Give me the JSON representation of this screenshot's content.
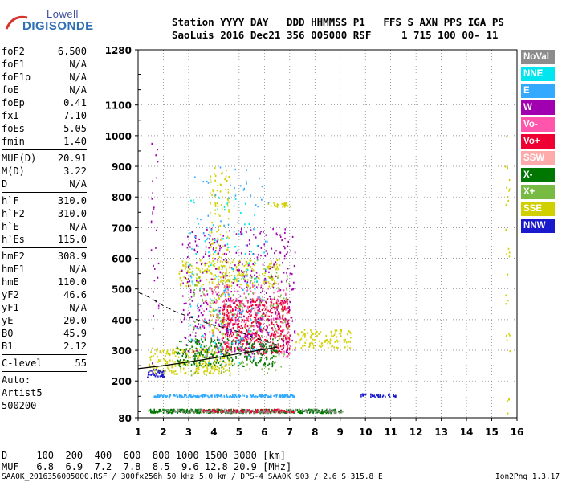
{
  "logo": {
    "line1": "Lowell",
    "line2": "DIGISONDE"
  },
  "header": {
    "line1": "Station YYYY DAY   DDD HHMMSS P1   FFS S AXN PPS IGA PS",
    "line2": "SaoLuis 2016 Dec21 356 005000 RSF     1 715 100 00- 11"
  },
  "params": {
    "group1": [
      {
        "name": "foF2",
        "value": "6.500"
      },
      {
        "name": "foF1",
        "value": "N/A"
      },
      {
        "name": "foF1p",
        "value": "N/A"
      },
      {
        "name": "foE",
        "value": "N/A"
      },
      {
        "name": "foEp",
        "value": "0.41"
      },
      {
        "name": "fxI",
        "value": "7.10"
      },
      {
        "name": "foEs",
        "value": "5.05"
      },
      {
        "name": "fmin",
        "value": "1.40"
      }
    ],
    "group2": [
      {
        "name": "MUF(D)",
        "value": "20.91"
      },
      {
        "name": "M(D)",
        "value": "3.22"
      },
      {
        "name": "D",
        "value": "N/A"
      }
    ],
    "group3": [
      {
        "name": "h`F",
        "value": "310.0"
      },
      {
        "name": "h`F2",
        "value": "310.0"
      },
      {
        "name": "h`E",
        "value": "N/A"
      },
      {
        "name": "h`Es",
        "value": "115.0"
      }
    ],
    "group4": [
      {
        "name": "hmF2",
        "value": "308.9"
      },
      {
        "name": "hmF1",
        "value": "N/A"
      },
      {
        "name": "hmE",
        "value": "110.0"
      },
      {
        "name": "yF2",
        "value": "46.6"
      },
      {
        "name": "yF1",
        "value": "N/A"
      },
      {
        "name": "yE",
        "value": "20.0"
      },
      {
        "name": "B0",
        "value": "45.9"
      },
      {
        "name": "B1",
        "value": "2.12"
      }
    ],
    "group5": [
      {
        "name": "C-level",
        "value": "55"
      }
    ],
    "auto": [
      "Auto:",
      "Artist5",
      "500200"
    ]
  },
  "legend": [
    {
      "label": "NoVal",
      "color": "#8c8c8c"
    },
    {
      "label": "NNE",
      "color": "#00e5ee"
    },
    {
      "label": "E",
      "color": "#33aaff"
    },
    {
      "label": "W",
      "color": "#a000b0"
    },
    {
      "label": "Vo-",
      "color": "#ff55aa"
    },
    {
      "label": "Vo+",
      "color": "#ee0033"
    },
    {
      "label": "SSW",
      "color": "#ffaaaa"
    },
    {
      "label": "X-",
      "color": "#007700"
    },
    {
      "label": "X+",
      "color": "#77bb44"
    },
    {
      "label": "SSE",
      "color": "#d0d000"
    },
    {
      "label": "NNW",
      "color": "#1a1acc"
    }
  ],
  "dmuf": {
    "line1": "D     100  200  400  600  800 1000 1500 3000 [km]",
    "line2": "MUF   6.8  6.9  7.2  7.8  8.5  9.6 12.8 20.9 [MHz]"
  },
  "footer": {
    "left": "SAA0K_2016356005000.RSF / 300fx256h 50 kHz 5.0 km / DPS-4 SAA0K 903 / 2.6 S 315.8 E",
    "right": "Ion2Png 1.3.17"
  },
  "chart_data": {
    "type": "scatter",
    "title": "",
    "xlabel": "",
    "ylabel": "",
    "xlim": [
      1,
      16
    ],
    "ylim": [
      80,
      1280
    ],
    "x_ticks": [
      1,
      2,
      3,
      4,
      5,
      6,
      7,
      8,
      9,
      10,
      11,
      12,
      13,
      14,
      15,
      16
    ],
    "y_ticks": [
      80,
      200,
      300,
      400,
      500,
      600,
      700,
      800,
      900,
      1000,
      1100,
      1280
    ],
    "grid": true,
    "trace_curve": [
      [
        1.0,
        240
      ],
      [
        2.0,
        250
      ],
      [
        3.0,
        262
      ],
      [
        4.0,
        275
      ],
      [
        5.0,
        289
      ],
      [
        6.0,
        303
      ],
      [
        6.5,
        310
      ]
    ],
    "dashed_curve": [
      [
        1.0,
        490
      ],
      [
        1.5,
        470
      ],
      [
        2.0,
        445
      ],
      [
        2.5,
        425
      ],
      [
        3.0,
        410
      ],
      [
        3.5,
        395
      ],
      [
        4.0,
        382
      ],
      [
        4.5,
        372
      ],
      [
        5.0,
        360
      ],
      [
        5.5,
        345
      ],
      [
        6.0,
        330
      ],
      [
        6.5,
        318
      ]
    ],
    "trace_regions": [
      {
        "mode": "SSE",
        "x": [
          1.4,
          4.7
        ],
        "y": [
          225,
          310
        ],
        "n": 280
      },
      {
        "mode": "SSE",
        "x": [
          2.6,
          6.6
        ],
        "y": [
          510,
          600
        ],
        "n": 220
      },
      {
        "mode": "SSE",
        "x": [
          3.8,
          4.6
        ],
        "y": [
          350,
          900
        ],
        "n": 180
      },
      {
        "mode": "SSE",
        "x": [
          6.0,
          7.0
        ],
        "y": [
          770,
          785
        ],
        "n": 25
      },
      {
        "mode": "SSE",
        "x": [
          7.2,
          9.4
        ],
        "y": [
          310,
          370
        ],
        "n": 110
      },
      {
        "mode": "Vo+",
        "x": [
          4.3,
          7.0
        ],
        "y": [
          290,
          470
        ],
        "n": 500
      },
      {
        "mode": "Vo-",
        "x": [
          3.5,
          7.0
        ],
        "y": [
          280,
          520
        ],
        "n": 260
      },
      {
        "mode": "W",
        "x": [
          2.7,
          7.2
        ],
        "y": [
          280,
          700
        ],
        "n": 420
      },
      {
        "mode": "W",
        "x": [
          1.5,
          1.8
        ],
        "y": [
          200,
          1000
        ],
        "n": 30
      },
      {
        "mode": "X-",
        "x": [
          2.5,
          6.5
        ],
        "y": [
          250,
          340
        ],
        "n": 260
      },
      {
        "mode": "X+",
        "x": [
          3.0,
          7.0
        ],
        "y": [
          220,
          560
        ],
        "n": 180
      },
      {
        "mode": "NNE",
        "x": [
          3.0,
          6.0
        ],
        "y": [
          260,
          800
        ],
        "n": 120
      },
      {
        "mode": "E",
        "x": [
          3.2,
          6.2
        ],
        "y": [
          290,
          900
        ],
        "n": 90
      },
      {
        "mode": "NNW",
        "x": [
          1.3,
          2.0
        ],
        "y": [
          215,
          240
        ],
        "n": 35
      },
      {
        "mode": "NNW",
        "x": [
          9.8,
          11.2
        ],
        "y": [
          150,
          160
        ],
        "n": 40
      },
      {
        "mode": "E",
        "x": [
          1.6,
          7.2
        ],
        "y": [
          148,
          158
        ],
        "n": 220
      },
      {
        "mode": "X-",
        "x": [
          1.4,
          9.1
        ],
        "y": [
          98,
          110
        ],
        "n": 380
      },
      {
        "mode": "Vo+",
        "x": [
          3.5,
          7.2
        ],
        "y": [
          100,
          110
        ],
        "n": 140
      },
      {
        "mode": "NoVal",
        "x": [
          2.0,
          9.2
        ],
        "y": [
          98,
          110
        ],
        "n": 120
      },
      {
        "mode": "SSE",
        "x": [
          15.5,
          15.7
        ],
        "y": [
          85,
          1000
        ],
        "n": 30
      }
    ]
  }
}
